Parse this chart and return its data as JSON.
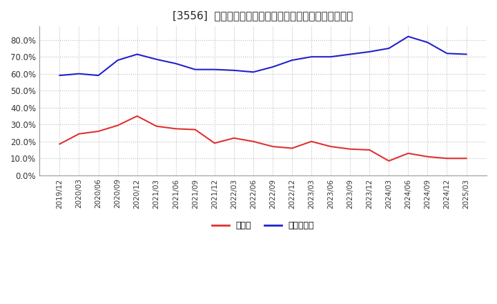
{
  "title": "[3556]  現顔金、有利子負債の総資産に対する比率の推移",
  "x_labels": [
    "2019/12",
    "2020/03",
    "2020/06",
    "2020/09",
    "2020/12",
    "2021/03",
    "2021/06",
    "2021/09",
    "2021/12",
    "2022/03",
    "2022/06",
    "2022/09",
    "2022/12",
    "2023/03",
    "2023/06",
    "2023/09",
    "2023/12",
    "2024/03",
    "2024/06",
    "2024/09",
    "2024/12",
    "2025/03"
  ],
  "cash": [
    0.185,
    0.245,
    0.26,
    0.295,
    0.35,
    0.29,
    0.275,
    0.27,
    0.19,
    0.22,
    0.2,
    0.17,
    0.16,
    0.2,
    0.17,
    0.155,
    0.15,
    0.085,
    0.13,
    0.11,
    0.1,
    0.1
  ],
  "debt": [
    0.59,
    0.6,
    0.59,
    0.68,
    0.715,
    0.685,
    0.66,
    0.625,
    0.625,
    0.62,
    0.61,
    0.64,
    0.68,
    0.7,
    0.7,
    0.715,
    0.73,
    0.75,
    0.82,
    0.785,
    0.72,
    0.715
  ],
  "cash_color": "#e03030",
  "debt_color": "#2020cc",
  "background_color": "#ffffff",
  "plot_bg_color": "#ffffff",
  "grid_color": "#bbbbbb",
  "title_fontsize": 11,
  "legend_labels": [
    "現顔金",
    "有利子負債"
  ],
  "ylim": [
    0.0,
    0.88
  ],
  "yticks": [
    0.0,
    0.1,
    0.2,
    0.3,
    0.4,
    0.5,
    0.6,
    0.7,
    0.8
  ]
}
